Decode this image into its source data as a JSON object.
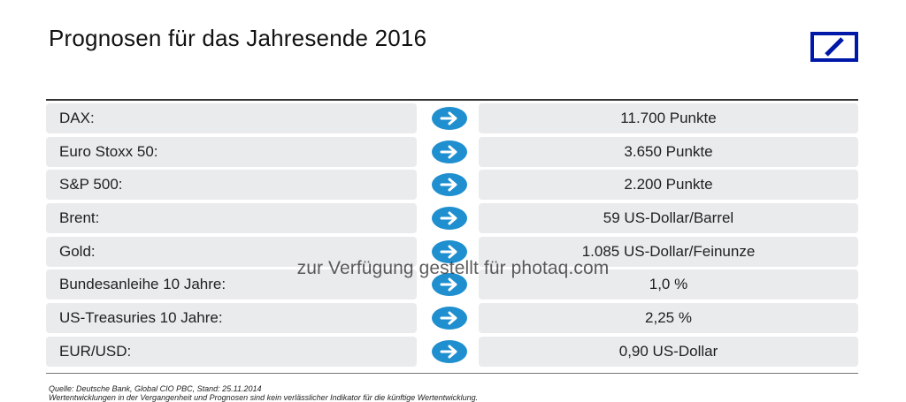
{
  "title": "Prognosen für das Jahresende 2016",
  "colors": {
    "logo_blue": "#0018a8",
    "arrow_blue": "#1f8fcf",
    "cell_bg": "#e9ebed"
  },
  "rows": [
    {
      "label": "DAX:",
      "value": "11.700 Punkte"
    },
    {
      "label": "Euro Stoxx 50:",
      "value": "3.650 Punkte"
    },
    {
      "label": "S&P 500:",
      "value": "2.200 Punkte"
    },
    {
      "label": "Brent:",
      "value": "59 US-Dollar/Barrel"
    },
    {
      "label": "Gold:",
      "value": "1.085 US-Dollar/Feinunze"
    },
    {
      "label": "Bundesanleihe 10 Jahre:",
      "value": "1,0 %"
    },
    {
      "label": "US-Treasuries 10 Jahre:",
      "value": "2,25 %"
    },
    {
      "label": "EUR/USD:",
      "value": "0,90 US-Dollar"
    }
  ],
  "watermark": "zur Verfügung gestellt für photaq.com",
  "footer": {
    "source": "Quelle: Deutsche Bank, Global CIO PBC, Stand: 25.11.2014",
    "disclaimer": "Wertentwicklungen in der Vergangenheit und Prognosen sind kein verlässlicher Indikator für die künftige Wertentwicklung."
  }
}
